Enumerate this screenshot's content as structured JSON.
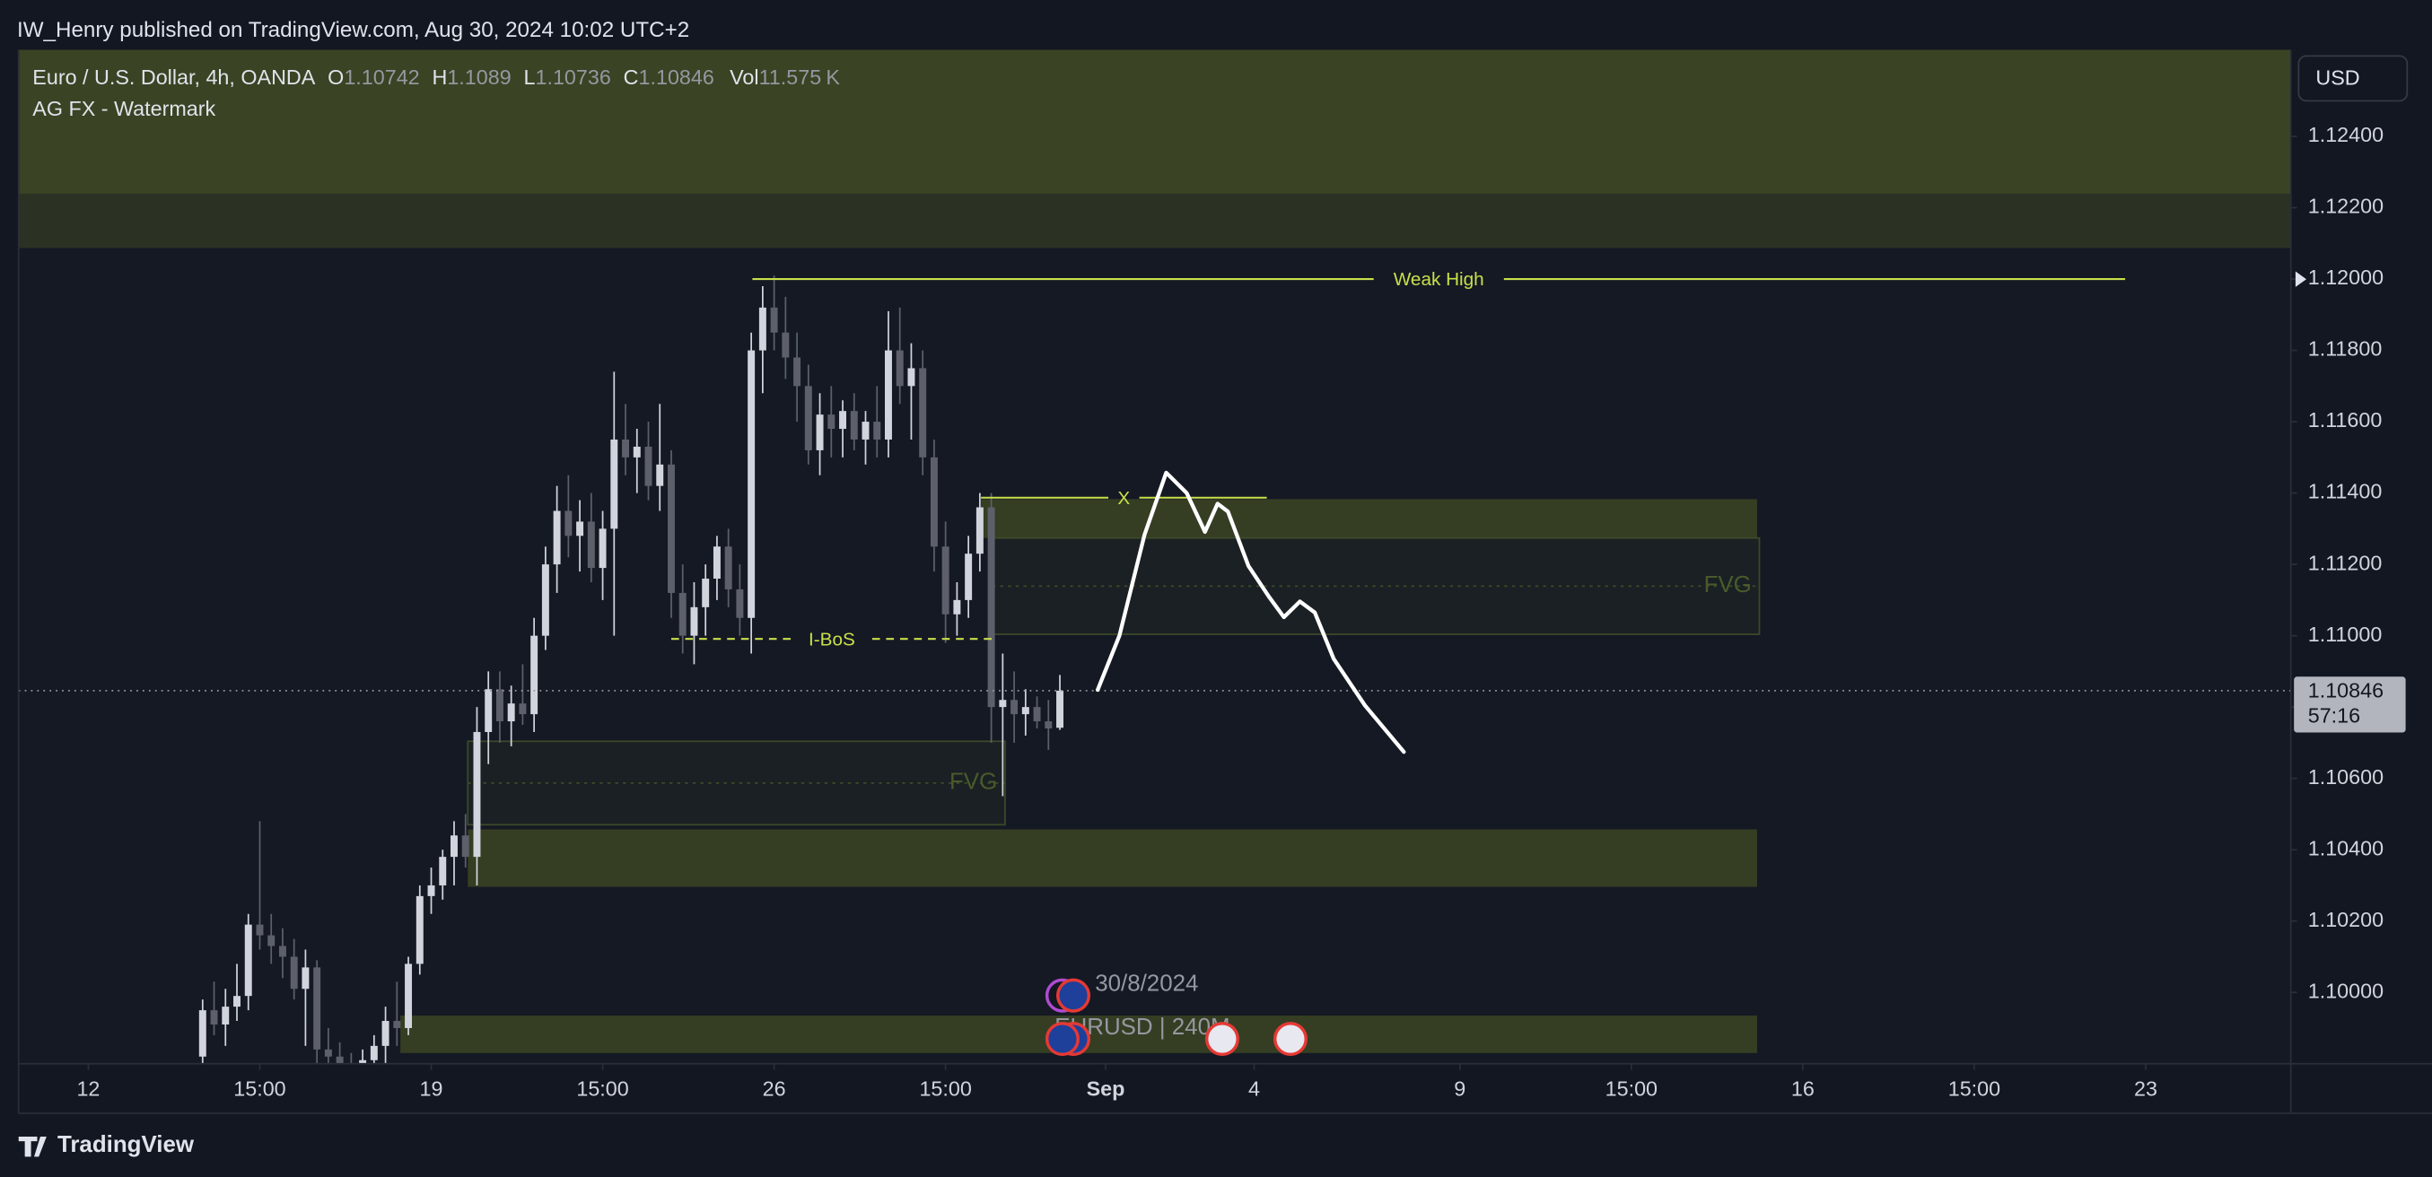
{
  "header": {
    "publisher": "IW_Henry published on TradingView.com, Aug 30, 2024 10:02 UTC+2",
    "symbol": "Euro / U.S. Dollar, 4h, OANDA",
    "o": "O",
    "h": "H",
    "l": "L",
    "c": "C",
    "vol": "Vol",
    "volume": "11.575",
    "volume_unit": "K",
    "indicator": "AG FX - Watermark"
  },
  "chart_data": {
    "type": "candlestick",
    "up_color": "#d1d4dc",
    "down_color": "#5d606b",
    "open": [
      1.0982,
      1.0995,
      1.0991,
      1.0996,
      1.0999,
      1.1019,
      1.1016,
      1.1013,
      1.101,
      1.1001,
      1.1007,
      1.0984,
      1.0982,
      1.0978,
      1.0976,
      1.0981,
      1.0985,
      1.0992,
      1.099,
      1.1008,
      1.1027,
      1.103,
      1.1038,
      1.1044,
      1.1038,
      1.1073,
      1.1085,
      1.1076,
      1.1081,
      1.1078,
      1.11,
      1.112,
      1.1135,
      1.1128,
      1.1132,
      1.1119,
      1.113,
      1.1155,
      1.115,
      1.1153,
      1.1142,
      1.1148,
      1.1112,
      1.11,
      1.1108,
      1.1116,
      1.1125,
      1.1113,
      1.1105,
      1.118,
      1.1192,
      1.1185,
      1.1178,
      1.117,
      1.1152,
      1.1162,
      1.1158,
      1.1163,
      1.1155,
      1.116,
      1.1155,
      1.118,
      1.117,
      1.1175,
      1.115,
      1.1125,
      1.1106,
      1.111,
      1.1123,
      1.1136,
      1.108,
      1.1082,
      1.1078,
      1.108,
      1.1076,
      1.10742
    ],
    "high": [
      1.0998,
      1.1003,
      1.1001,
      1.1008,
      1.1022,
      1.1048,
      1.1022,
      1.1018,
      1.1015,
      1.1012,
      1.1009,
      1.099,
      1.0986,
      1.0983,
      1.0984,
      1.0988,
      1.0996,
      1.1003,
      1.101,
      1.103,
      1.1035,
      1.104,
      1.1048,
      1.105,
      1.108,
      1.109,
      1.109,
      1.1086,
      1.1092,
      1.1105,
      1.1125,
      1.1142,
      1.1145,
      1.1138,
      1.114,
      1.1135,
      1.1174,
      1.1165,
      1.1158,
      1.116,
      1.1165,
      1.1152,
      1.112,
      1.1115,
      1.112,
      1.1128,
      1.113,
      1.112,
      1.1185,
      1.1198,
      1.1201,
      1.1195,
      1.1185,
      1.1176,
      1.1168,
      1.117,
      1.1166,
      1.1168,
      1.1163,
      1.117,
      1.1191,
      1.1192,
      1.1182,
      1.118,
      1.1155,
      1.1132,
      1.1115,
      1.1128,
      1.114,
      1.114,
      1.1095,
      1.109,
      1.1085,
      1.1083,
      1.1082,
      1.1089
    ],
    "low": [
      1.098,
      1.0988,
      1.0985,
      1.0992,
      1.0995,
      1.1012,
      1.1008,
      1.1004,
      1.0998,
      1.0985,
      1.098,
      1.0975,
      1.0974,
      1.0972,
      1.097,
      1.0976,
      1.098,
      1.0985,
      1.0988,
      1.1005,
      1.1022,
      1.1026,
      1.103,
      1.1035,
      1.103,
      1.1064,
      1.107,
      1.1069,
      1.1075,
      1.1073,
      1.1096,
      1.1112,
      1.1122,
      1.1118,
      1.1115,
      1.111,
      1.11,
      1.1145,
      1.114,
      1.1138,
      1.1135,
      1.1105,
      1.1095,
      1.1092,
      1.11,
      1.111,
      1.1108,
      1.11,
      1.1095,
      1.1168,
      1.118,
      1.1172,
      1.116,
      1.1148,
      1.1145,
      1.115,
      1.115,
      1.1152,
      1.1148,
      1.115,
      1.115,
      1.1165,
      1.1155,
      1.1145,
      1.1118,
      1.1098,
      1.11,
      1.1105,
      1.1118,
      1.107,
      1.1055,
      1.107,
      1.1072,
      1.1074,
      1.1068,
      1.10736
    ],
    "close": [
      1.0995,
      1.0991,
      1.0996,
      1.0999,
      1.1019,
      1.1016,
      1.1013,
      1.101,
      1.1001,
      1.1007,
      1.0984,
      1.0982,
      1.0978,
      1.0976,
      1.0981,
      1.0985,
      1.0992,
      1.099,
      1.1008,
      1.1027,
      1.103,
      1.1038,
      1.1044,
      1.1038,
      1.1073,
      1.1085,
      1.1076,
      1.1081,
      1.1078,
      1.11,
      1.112,
      1.1135,
      1.1128,
      1.1132,
      1.1119,
      1.113,
      1.1155,
      1.115,
      1.1153,
      1.1142,
      1.1148,
      1.1112,
      1.11,
      1.1108,
      1.1116,
      1.1125,
      1.1113,
      1.1105,
      1.118,
      1.1192,
      1.1185,
      1.1178,
      1.117,
      1.1152,
      1.1162,
      1.1158,
      1.1163,
      1.1155,
      1.116,
      1.1155,
      1.118,
      1.117,
      1.1175,
      1.115,
      1.1125,
      1.1106,
      1.111,
      1.1123,
      1.1136,
      1.108,
      1.1082,
      1.1078,
      1.108,
      1.1076,
      1.1074,
      1.10846
    ],
    "xlim": [
      -16.1,
      182.7
    ],
    "xticks": [
      {
        "value": -10,
        "label": "12"
      },
      {
        "value": 5,
        "label": "15:00"
      },
      {
        "value": 20,
        "label": "19"
      },
      {
        "value": 35,
        "label": "15:00"
      },
      {
        "value": 50,
        "label": "26"
      },
      {
        "value": 65,
        "label": "15:00"
      },
      {
        "value": 79,
        "label": "Sep"
      },
      {
        "value": 92,
        "label": "4"
      },
      {
        "value": 110,
        "label": "9"
      },
      {
        "value": 125,
        "label": "15:00"
      },
      {
        "value": 140,
        "label": "16"
      },
      {
        "value": 155,
        "label": "15:00"
      },
      {
        "value": 170,
        "label": "23"
      }
    ],
    "ylim": [
      1.098,
      1.12643
    ],
    "yticks": [
      {
        "value": 1.1,
        "label": "1.10000"
      },
      {
        "value": 1.102,
        "label": "1.10200"
      },
      {
        "value": 1.104,
        "label": "1.10400"
      },
      {
        "value": 1.106,
        "label": "1.10600"
      },
      {
        "value": 1.108,
        "label": "1.10800"
      },
      {
        "value": 1.11,
        "label": "1.11000"
      },
      {
        "value": 1.112,
        "label": "1.11200"
      },
      {
        "value": 1.114,
        "label": "1.11400"
      },
      {
        "value": 1.116,
        "label": "1.11600"
      },
      {
        "value": 1.118,
        "label": "1.11800"
      },
      {
        "value": 1.12,
        "label": "1.12000"
      },
      {
        "value": 1.122,
        "label": "1.12200"
      },
      {
        "value": 1.124,
        "label": "1.12400"
      }
    ],
    "currency": "USD",
    "countdown": "57:16",
    "zones": [
      {
        "x": [
          -16.1,
          182.7
        ],
        "y": [
          1.12239,
          1.12643
        ],
        "color": "#3a4323"
      },
      {
        "x": [
          -16.1,
          182.7
        ],
        "y": [
          1.12087,
          1.12239
        ],
        "color": "#2b3224"
      },
      {
        "x": [
          68.1,
          136
        ],
        "y": [
          1.11274,
          1.11383
        ],
        "color": "#353e23"
      },
      {
        "x": [
          69.1,
          136.2
        ],
        "y": [
          1.11004,
          1.11274
        ],
        "color": "#1a2023",
        "label": "FVG"
      },
      {
        "x": [
          23.2,
          70.2
        ],
        "y": [
          1.1047,
          1.10704
        ],
        "color": "#1a2023",
        "label": "FVG"
      },
      {
        "x": [
          23.2,
          136
        ],
        "y": [
          1.10296,
          1.10457
        ],
        "color": "#353e23"
      },
      {
        "x": [
          17.3,
          136
        ],
        "y": [
          1.0983,
          1.09935
        ],
        "color": "#353e23"
      }
    ],
    "lines": [
      {
        "label": "Weak High",
        "x": [
          48.1,
          168.2
        ],
        "y": 1.12,
        "style": "solid"
      },
      {
        "label": "X",
        "x": [
          68.1,
          93.1
        ],
        "y": 1.11387,
        "style": "solid"
      },
      {
        "label": "I-BoS",
        "x": [
          41,
          69.1
        ],
        "y": 1.10991,
        "style": "dashed"
      }
    ],
    "line_color": "#c8e04a",
    "projection": {
      "x": [
        78.3,
        80.2,
        82.4,
        84.3,
        86.1,
        87.7,
        88.8,
        89.7,
        91.5,
        93.3,
        94.6,
        96,
        97.3,
        98.96,
        101.7,
        105.1
      ],
      "y": [
        1.10848,
        1.11,
        1.11283,
        1.11457,
        1.114,
        1.11291,
        1.1137,
        1.11348,
        1.11196,
        1.11109,
        1.11052,
        1.11096,
        1.11065,
        1.10935,
        1.10804,
        1.10674
      ],
      "color": "#ffffff"
    }
  },
  "events": {
    "date": "30/8/2024",
    "symbol": "EURUSD | 240M"
  },
  "footer": {
    "brand": "TradingView"
  }
}
